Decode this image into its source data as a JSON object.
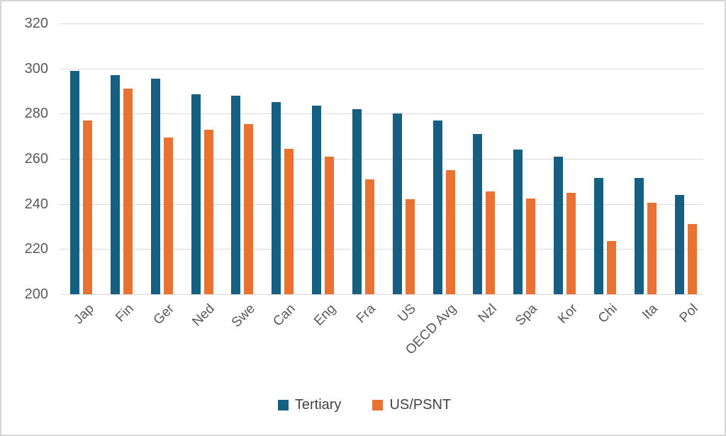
{
  "chart_data": {
    "type": "bar",
    "title": "",
    "categories": [
      "Jap",
      "Fin",
      "Ger",
      "Ned",
      "Swe",
      "Can",
      "Eng",
      "Fra",
      "US",
      "OECD Avg",
      "Nzl",
      "Spa",
      "Kor",
      "Chi",
      "Ita",
      "Pol"
    ],
    "series": [
      {
        "name": "Tertiary",
        "color": "#156082",
        "values": [
          299,
          297,
          295.5,
          288.5,
          288,
          285,
          283.5,
          282,
          280,
          277,
          271,
          264,
          261,
          251.5,
          251.5,
          244
        ]
      },
      {
        "name": "US/PSNT",
        "color": "#E97132",
        "values": [
          277,
          291,
          269.5,
          273,
          275.5,
          264.5,
          261,
          251,
          242,
          255,
          245.5,
          242.5,
          245,
          223.5,
          240.5,
          231
        ]
      }
    ],
    "xlabel": "",
    "ylabel": "",
    "ylim": [
      200,
      320
    ],
    "yticks": [
      200,
      220,
      240,
      260,
      280,
      300,
      320
    ],
    "grid": true,
    "legend_position": "bottom",
    "colors": {
      "gridline": "#d9d9d9",
      "axis_text": "#595959",
      "legend_text": "#444444",
      "background": "#ffffff"
    }
  }
}
